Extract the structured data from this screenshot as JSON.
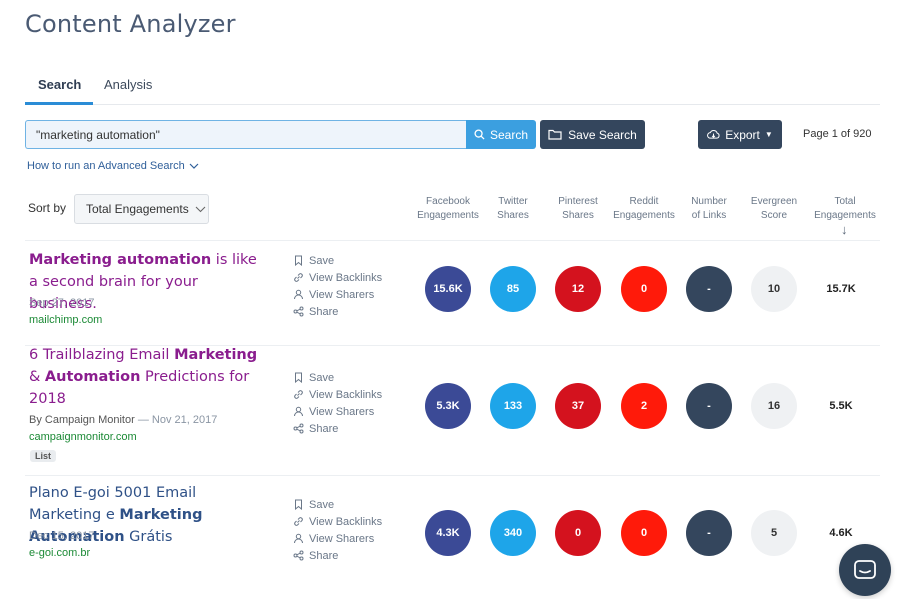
{
  "app": {
    "title": "Content Analyzer"
  },
  "tabs": [
    {
      "label": "Search",
      "active": true
    },
    {
      "label": "Analysis",
      "active": false
    }
  ],
  "search": {
    "value": "\"marketing automation\"",
    "button_label": "Search",
    "save_label": "Save Search"
  },
  "export": {
    "label": "Export"
  },
  "pagination": {
    "text": "Page 1 of 920"
  },
  "advanced_link": "How to run an Advanced Search",
  "sort": {
    "label": "Sort by",
    "selected": "Total Engagements"
  },
  "columns": [
    {
      "line1": "Facebook",
      "line2": "Engagements"
    },
    {
      "line1": "Twitter",
      "line2": "Shares"
    },
    {
      "line1": "Pinterest",
      "line2": "Shares"
    },
    {
      "line1": "Reddit",
      "line2": "Engagements"
    },
    {
      "line1": "Number",
      "line2": "of Links"
    },
    {
      "line1": "Evergreen",
      "line2": "Score"
    },
    {
      "line1": "Total",
      "line2": "Engagements"
    }
  ],
  "actions": {
    "save": "Save",
    "backlinks": "View Backlinks",
    "sharers": "View Sharers",
    "share": "Share"
  },
  "results": [
    {
      "title_parts": [
        [
          "Marketing automation",
          true
        ],
        [
          " is like a second brain for your business.",
          false
        ]
      ],
      "author": "",
      "date": "Sep 27, 2017",
      "domain": "mailchimp.com",
      "badge": "",
      "facebook": "15.6K",
      "twitter": "85",
      "pinterest": "12",
      "reddit": "0",
      "links": "-",
      "evergreen": "10",
      "total": "15.7K"
    },
    {
      "title_parts": [
        [
          "6 Trailblazing Email ",
          false
        ],
        [
          "Marketing",
          true
        ],
        [
          " & ",
          false
        ],
        [
          "Automation",
          true
        ],
        [
          " Predictions for 2018",
          false
        ]
      ],
      "author": "By Campaign Monitor",
      "date": "Nov 21, 2017",
      "domain": "campaignmonitor.com",
      "badge": "List",
      "facebook": "5.3K",
      "twitter": "133",
      "pinterest": "37",
      "reddit": "2",
      "links": "-",
      "evergreen": "16",
      "total": "5.5K"
    },
    {
      "title_parts": [
        [
          "Plano E-goi 5001 Email Marketing e ",
          false
        ],
        [
          "Marketing Automation",
          true
        ],
        [
          " Grátis",
          false
        ]
      ],
      "author": "",
      "date": "Dec 15, 2017",
      "domain": "e-goi.com.br",
      "badge": "",
      "facebook": "4.3K",
      "twitter": "340",
      "pinterest": "0",
      "reddit": "0",
      "links": "-",
      "evergreen": "5",
      "total": "4.6K"
    }
  ],
  "colors": {
    "facebook": "#3b4a96",
    "twitter": "#1ea5e9",
    "pinterest": "#d4121e",
    "reddit": "#ff1a0a",
    "links": "#34465d",
    "evergreen": "#eff1f3",
    "accent": "#2a8cd6",
    "title_visited": "#8a1d8e",
    "title_link": "#2f5187",
    "domain": "#1c8a36"
  }
}
